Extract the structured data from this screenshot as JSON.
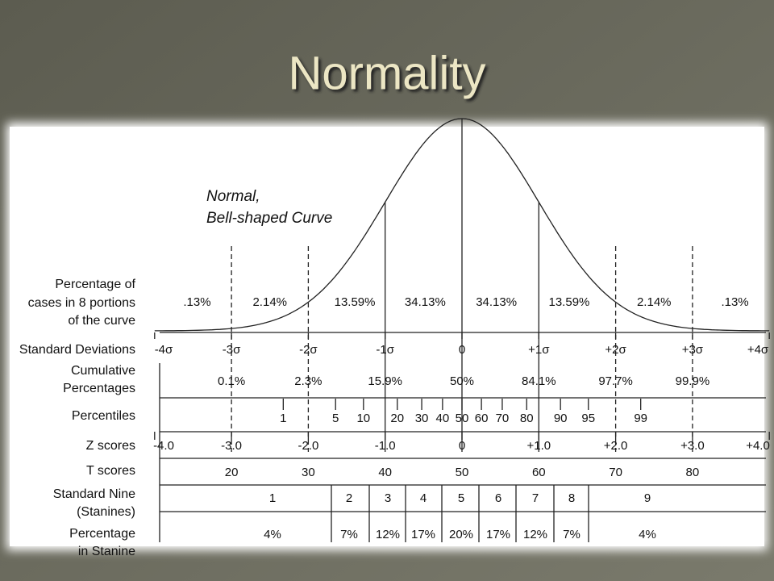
{
  "title": "Normality",
  "curve_label": [
    "Normal,",
    "Bell-shaped Curve"
  ],
  "rows": [
    {
      "label": [
        "Percentage of",
        "cases in 8 portions",
        "of the curve"
      ],
      "values": [
        ".13%",
        "2.14%",
        "13.59%",
        "34.13%",
        "34.13%",
        "13.59%",
        "2.14%",
        ".13%"
      ]
    },
    {
      "label": [
        "Standard Deviations"
      ],
      "values": [
        "-4σ",
        "-3σ",
        "-2σ",
        "-1σ",
        "0",
        "+1σ",
        "+2σ",
        "+3σ",
        "+4σ"
      ]
    },
    {
      "label": [
        "Cumulative",
        "Percentages"
      ],
      "values": [
        "0.1%",
        "2.3%",
        "15.9%",
        "50%",
        "84.1%",
        "97.7%",
        "99.9%"
      ]
    },
    {
      "label": [
        "Percentiles"
      ],
      "values": [
        "1",
        "5",
        "10",
        "20",
        "30",
        "40",
        "50",
        "60",
        "70",
        "80",
        "90",
        "95",
        "99"
      ]
    },
    {
      "label": [
        "Z scores"
      ],
      "values": [
        "-4.0",
        "-3.0",
        "-2.0",
        "-1.0",
        "0",
        "+1.0",
        "+2.0",
        "+3.0",
        "+4.0"
      ]
    },
    {
      "label": [
        "T scores"
      ],
      "values": [
        "20",
        "30",
        "40",
        "50",
        "60",
        "70",
        "80"
      ]
    },
    {
      "label": [
        "Standard Nine",
        "(Stanines)"
      ],
      "values": [
        "1",
        "2",
        "3",
        "4",
        "5",
        "6",
        "7",
        "8",
        "9"
      ]
    },
    {
      "label": [
        "Percentage",
        "in Stanine"
      ],
      "values": [
        "4%",
        "7%",
        "12%",
        "17%",
        "20%",
        "17%",
        "12%",
        "7%",
        "4%"
      ]
    }
  ]
}
